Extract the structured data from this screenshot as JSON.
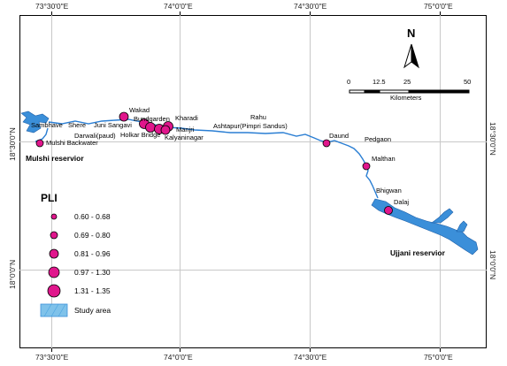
{
  "map": {
    "top_lon_labels": [
      "73°30'0\"E",
      "74°0'0\"E",
      "74°30'0\"E",
      "75°0'0\"E"
    ],
    "bottom_lon_labels": [
      "73°30'0\"E",
      "74°0'0\"E",
      "74°30'0\"E",
      "75°0'0\"E"
    ],
    "left_lat_labels": [
      "18°30'0\"N",
      "18°0'0\"N"
    ],
    "right_lat_labels": [
      "18°30'0\"N",
      "18°0'0\"N"
    ],
    "north_arrow": {
      "label": "N",
      "icon": "north-arrow-icon"
    },
    "scale_bar": {
      "ticks": [
        "0",
        "12.5",
        "25",
        "50"
      ],
      "unit": "Kilometers"
    },
    "sites": [
      {
        "name": "Sambhave",
        "pli_class": "none"
      },
      {
        "name": "Shere",
        "pli_class": "none"
      },
      {
        "name": "Juni Sangavi",
        "pli_class": "none"
      },
      {
        "name": "Wakad",
        "pli_class": "0.97 - 1.30"
      },
      {
        "name": "Bundgarden",
        "pli_class": "1.31 - 1.35"
      },
      {
        "name": "Kharadi",
        "pli_class": "1.31 - 1.35"
      },
      {
        "name": "Darwali(paud)",
        "pli_class": "none"
      },
      {
        "name": "Holkar Bridge",
        "pli_class": "1.31 - 1.35"
      },
      {
        "name": "Manjri",
        "pli_class": "1.31 - 1.35"
      },
      {
        "name": "Kalyaninagar",
        "pli_class": "1.31 - 1.35"
      },
      {
        "name": "Mulshi Backwater",
        "pli_class": "0.69 - 0.80"
      },
      {
        "name": "Rahu",
        "pli_class": "none"
      },
      {
        "name": "Ashtapur(Pimpri Sandus)",
        "pli_class": "none"
      },
      {
        "name": "Daund",
        "pli_class": "0.69 - 0.80"
      },
      {
        "name": "Pedgaon",
        "pli_class": "none"
      },
      {
        "name": "Malthan",
        "pli_class": "0.69 - 0.80"
      },
      {
        "name": "Bhigwan",
        "pli_class": "none"
      },
      {
        "name": "Dalaj",
        "pli_class": "0.81 - 0.96"
      }
    ],
    "reservoirs": [
      "Mulshi reservior",
      "Ujjani reservior"
    ],
    "colors": {
      "point_fill": "#e0168c",
      "water": "#3b8fd9",
      "study_area": "#7fc2ea"
    }
  },
  "legend": {
    "title": "PLI",
    "classes": [
      "0.60 - 0.68",
      "0.69 - 0.80",
      "0.81 - 0.96",
      "0.97 - 1.30",
      "1.31 - 1.35"
    ],
    "study_area_label": "Study area"
  }
}
